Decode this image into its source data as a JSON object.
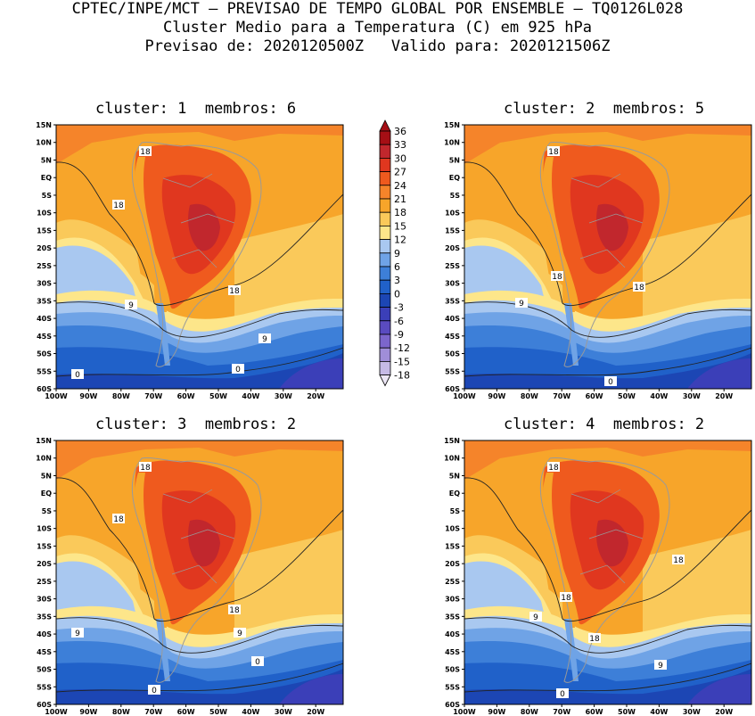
{
  "header": {
    "line1": "CPTEC/INPE/MCT – PREVISAO DE TEMPO GLOBAL POR ENSEMBLE – TQ0126L028",
    "line2": "Cluster Medio para a Temperatura (C) em 925 hPa",
    "line3": "Previsao de: 2020120500Z   Valido para: 2020121506Z"
  },
  "panels": [
    {
      "title": "cluster: 1  membros: 6",
      "contour_labels": [
        "18",
        "18",
        "18",
        "9",
        "9",
        "0",
        "0"
      ]
    },
    {
      "title": "cluster: 2  membros: 5",
      "contour_labels": [
        "18",
        "18",
        "18",
        "9",
        "0"
      ]
    },
    {
      "title": "cluster: 3  membros: 2",
      "contour_labels": [
        "18",
        "18",
        "18",
        "9",
        "9",
        "0",
        "0"
      ]
    },
    {
      "title": "cluster: 4  membros: 2",
      "contour_labels": [
        "18",
        "18",
        "18",
        "18",
        "9",
        "9",
        "0"
      ]
    }
  ],
  "lat_labels": [
    "15N",
    "10N",
    "5N",
    "EQ",
    "5S",
    "10S",
    "15S",
    "20S",
    "25S",
    "30S",
    "35S",
    "40S",
    "45S",
    "50S",
    "55S",
    "60S"
  ],
  "lon_labels": [
    "100W",
    "90W",
    "80W",
    "70W",
    "60W",
    "50W",
    "40W",
    "30W",
    "20W"
  ],
  "colorbar": {
    "labels": [
      "36",
      "33",
      "30",
      "27",
      "24",
      "21",
      "18",
      "15",
      "12",
      "9",
      "6",
      "3",
      "0",
      "-3",
      "-6",
      "-9",
      "-12",
      "-15",
      "-18"
    ],
    "colors": [
      "#a50f15",
      "#c1272d",
      "#e0371f",
      "#ef5a1e",
      "#f5842a",
      "#f7a52a",
      "#fac95a",
      "#fde68a",
      "#a9c8f0",
      "#6fa3e6",
      "#3d7fd8",
      "#2061c9",
      "#1c46b4",
      "#3b3fb8",
      "#5a4bc0",
      "#7c66cc",
      "#a08ed8",
      "#c6bae6"
    ]
  },
  "legend_units": "C"
}
